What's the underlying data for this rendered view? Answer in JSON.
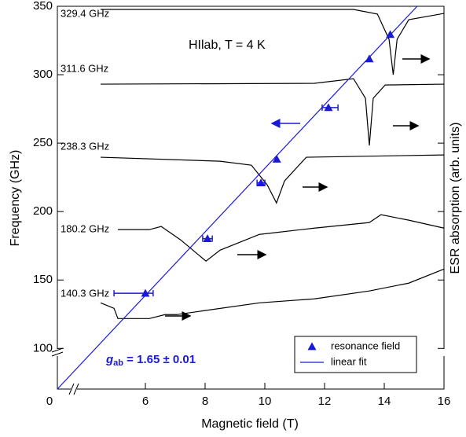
{
  "chart_data": {
    "type": "scatter",
    "annotation": "HIlab, T = 4 K",
    "fit_label": "g",
    "fit_label_sub": "ab",
    "fit_label_rest": " = 1.65 ± 0.01",
    "xlabel": "Magnetic field (T)",
    "ylabel": "Frequency (GHz)",
    "y2label": "ESR absorption (arb. units)",
    "xlim": [
      0,
      16
    ],
    "xbreak": [
      0.6,
      4.5
    ],
    "ylim": [
      0,
      350
    ],
    "ybreak": [
      20,
      95
    ],
    "xticks": [
      0,
      6,
      8,
      10,
      12,
      14,
      16
    ],
    "yticks": [
      100,
      150,
      200,
      250,
      300,
      350
    ],
    "legend": "bottom right",
    "series": [
      {
        "name": "resonance field",
        "color": "#1a1ad6",
        "x": [
          6.0,
          8.08,
          9.87,
          10.4,
          12.13,
          13.5,
          14.2
        ],
        "values": [
          140.3,
          180.2,
          221,
          238.3,
          276,
          311.6,
          329.4
        ],
        "xerr_minus": [
          1.05,
          0.16,
          0.13,
          null,
          0.21,
          null,
          null
        ],
        "xerr_plus": [
          0.26,
          0.16,
          0.13,
          null,
          0.32,
          null,
          null
        ]
      },
      {
        "name": "linear fit",
        "color": "#1a1ad6",
        "kind": "line",
        "x": [
          0,
          15.1
        ],
        "values": [
          0,
          350
        ]
      }
    ],
    "traces": [
      {
        "label": "329.4 GHz",
        "x": [
          4.5,
          12.97,
          13.77,
          14.16,
          14.3,
          14.43,
          14.82,
          16
        ],
        "values": [
          347.7,
          347.7,
          344.3,
          325.9,
          300,
          325.9,
          340.2,
          344.8
        ]
      },
      {
        "label": "311.6 GHz",
        "x": [
          4.5,
          11.66,
          12.97,
          13.37,
          13.5,
          13.63,
          14.03,
          16
        ],
        "values": [
          293.1,
          293.7,
          297.1,
          282.8,
          248.3,
          282.8,
          292.5,
          293.1
        ]
      },
      {
        "label": "238.3 GHz",
        "x": [
          4.5,
          8.5,
          9.55,
          10.08,
          10.39,
          10.66,
          11.39,
          16
        ],
        "values": [
          239.7,
          236.8,
          233.9,
          219.5,
          206.3,
          222.4,
          239.7,
          241.4
        ]
      },
      {
        "label": "180.2 GHz",
        "x": [
          5.08,
          6.13,
          6.53,
          7.18,
          8.03,
          8.5,
          9.82,
          11.66,
          13.5,
          13.89,
          14.82,
          16
        ],
        "values": [
          186.8,
          186.8,
          189.1,
          179.3,
          163.8,
          171.8,
          183.3,
          187.9,
          192,
          197.7,
          193.7,
          187.9
        ]
      },
      {
        "label": "140.3 GHz",
        "x": [
          4.5,
          4.95,
          5.08,
          6.13,
          6.66,
          7.05,
          7.97,
          9.82,
          11.66,
          13.5,
          14.82,
          16
        ],
        "values": [
          133.3,
          129.3,
          121.8,
          121.8,
          124.7,
          124.7,
          127.6,
          133.3,
          136.2,
          142,
          147.7,
          158
        ]
      }
    ]
  }
}
